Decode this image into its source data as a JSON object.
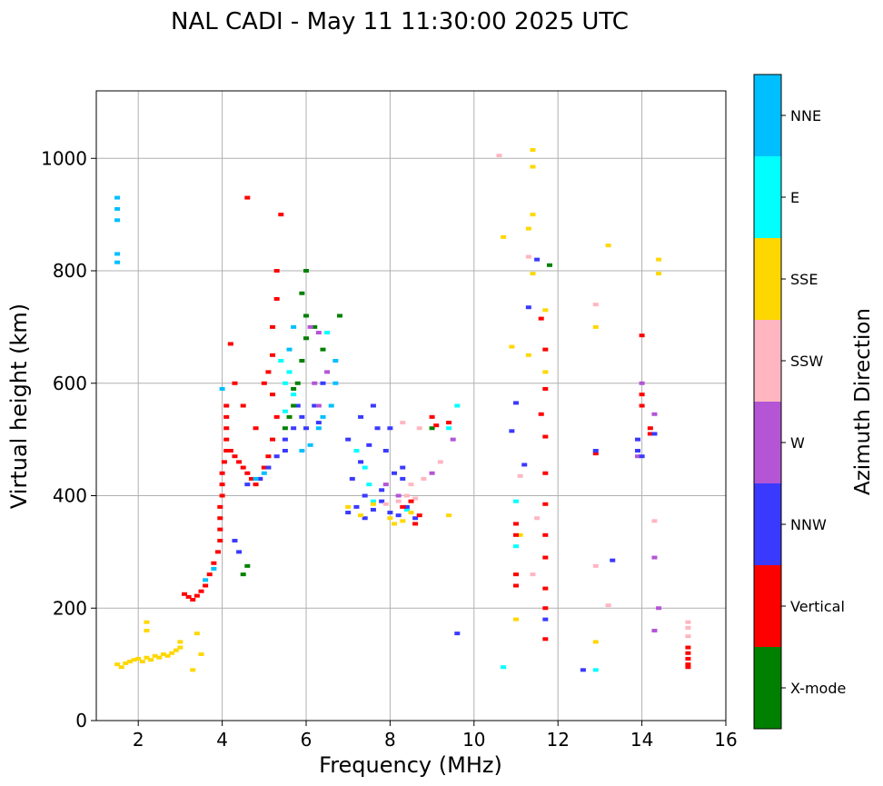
{
  "chart_data": {
    "type": "scatter",
    "title": "NAL CADI - May 11 11:30:00 2025 UTC",
    "xlabel": "Frequency (MHz)",
    "ylabel": "Virtual height (km)",
    "xlim": [
      1,
      16
    ],
    "ylim": [
      0,
      1120
    ],
    "xticks": [
      2,
      4,
      6,
      8,
      10,
      12,
      14,
      16
    ],
    "yticks": [
      0,
      200,
      400,
      600,
      800,
      1000
    ],
    "grid": true,
    "colorbar": {
      "label": "Azimuth Direction",
      "categories": [
        {
          "name": "X-mode",
          "color": "#008000"
        },
        {
          "name": "Vertical",
          "color": "#ff0000"
        },
        {
          "name": "NNW",
          "color": "#3a3aff"
        },
        {
          "name": "W",
          "color": "#b455d6"
        },
        {
          "name": "SSW",
          "color": "#ffb6c1"
        },
        {
          "name": "SSE",
          "color": "#ffd700"
        },
        {
          "name": "E",
          "color": "#00ffff"
        },
        {
          "name": "NNE",
          "color": "#00bfff"
        }
      ]
    },
    "series": [
      {
        "name": "echo-trace-low-E",
        "points": [
          [
            1.5,
            100
          ],
          [
            1.6,
            95
          ],
          [
            1.7,
            102
          ],
          [
            1.8,
            105
          ],
          [
            1.9,
            108
          ],
          [
            2.0,
            110
          ],
          [
            2.1,
            105
          ],
          [
            2.2,
            112
          ],
          [
            2.3,
            108
          ],
          [
            2.4,
            115
          ],
          [
            2.5,
            112
          ],
          [
            2.6,
            118
          ],
          [
            2.7,
            115
          ],
          [
            2.8,
            120
          ],
          [
            2.9,
            125
          ],
          [
            3.0,
            130
          ],
          [
            3.0,
            140
          ],
          [
            2.2,
            160
          ],
          [
            2.2,
            175
          ],
          [
            3.4,
            155
          ],
          [
            3.5,
            118
          ],
          [
            3.3,
            90
          ]
        ],
        "category": "SSE"
      },
      {
        "name": "echo-trace-1.5MHz",
        "points": [
          [
            1.5,
            930
          ],
          [
            1.5,
            910
          ],
          [
            1.5,
            890
          ],
          [
            1.5,
            830
          ],
          [
            1.5,
            815
          ]
        ],
        "category": "NNE"
      },
      {
        "name": "echo-trace-F-rise",
        "points": [
          [
            3.1,
            225
          ],
          [
            3.2,
            220
          ],
          [
            3.3,
            215
          ],
          [
            3.4,
            222
          ],
          [
            3.5,
            230
          ],
          [
            3.6,
            240
          ],
          [
            3.7,
            260
          ],
          [
            3.8,
            280
          ],
          [
            3.9,
            300
          ],
          [
            3.95,
            320
          ],
          [
            3.95,
            340
          ],
          [
            3.95,
            360
          ],
          [
            3.95,
            380
          ],
          [
            4.0,
            400
          ],
          [
            4.0,
            420
          ],
          [
            4.0,
            440
          ],
          [
            4.05,
            460
          ],
          [
            4.1,
            480
          ],
          [
            4.1,
            500
          ],
          [
            4.1,
            520
          ],
          [
            4.1,
            540
          ],
          [
            4.1,
            560
          ],
          [
            4.2,
            480
          ],
          [
            4.3,
            470
          ],
          [
            4.4,
            460
          ],
          [
            4.5,
            450
          ],
          [
            4.6,
            440
          ],
          [
            4.7,
            430
          ],
          [
            4.8,
            420
          ],
          [
            4.9,
            430
          ],
          [
            5.0,
            450
          ],
          [
            5.1,
            470
          ],
          [
            5.2,
            500
          ],
          [
            5.3,
            540
          ],
          [
            5.2,
            580
          ],
          [
            5.1,
            620
          ],
          [
            5.2,
            650
          ],
          [
            5.2,
            700
          ],
          [
            5.3,
            750
          ],
          [
            5.3,
            800
          ],
          [
            5.4,
            900
          ],
          [
            4.6,
            930
          ],
          [
            4.2,
            670
          ],
          [
            4.3,
            600
          ],
          [
            4.5,
            560
          ],
          [
            4.8,
            520
          ],
          [
            5.0,
            600
          ]
        ],
        "category": "Vertical"
      },
      {
        "name": "echo-trace-nnw-F",
        "points": [
          [
            4.4,
            300
          ],
          [
            4.3,
            320
          ],
          [
            4.6,
            420
          ],
          [
            4.9,
            430
          ],
          [
            5.1,
            450
          ],
          [
            5.3,
            470
          ],
          [
            5.5,
            500
          ],
          [
            5.7,
            520
          ],
          [
            5.9,
            540
          ],
          [
            6.0,
            520
          ],
          [
            6.2,
            560
          ],
          [
            6.3,
            530
          ],
          [
            5.5,
            480
          ],
          [
            5.8,
            560
          ],
          [
            6.4,
            600
          ]
        ],
        "category": "NNW"
      },
      {
        "name": "echo-trace-nne-F",
        "points": [
          [
            3.6,
            250
          ],
          [
            3.8,
            270
          ],
          [
            4.0,
            590
          ],
          [
            4.8,
            430
          ],
          [
            5.0,
            440
          ],
          [
            5.9,
            480
          ],
          [
            6.1,
            490
          ],
          [
            6.3,
            520
          ],
          [
            6.4,
            540
          ],
          [
            6.6,
            560
          ],
          [
            6.7,
            600
          ],
          [
            6.7,
            640
          ],
          [
            5.6,
            660
          ],
          [
            5.7,
            700
          ]
        ],
        "category": "NNE"
      },
      {
        "name": "echo-trace-xmode",
        "points": [
          [
            4.5,
            260
          ],
          [
            4.6,
            275
          ],
          [
            5.5,
            520
          ],
          [
            5.6,
            540
          ],
          [
            5.7,
            560
          ],
          [
            5.8,
            600
          ],
          [
            5.9,
            640
          ],
          [
            6.0,
            680
          ],
          [
            6.0,
            720
          ],
          [
            5.9,
            760
          ],
          [
            6.0,
            800
          ],
          [
            6.2,
            700
          ],
          [
            6.4,
            660
          ],
          [
            6.8,
            720
          ],
          [
            5.7,
            590
          ],
          [
            9.0,
            520
          ],
          [
            11.8,
            810
          ]
        ],
        "category": "X-mode"
      },
      {
        "name": "echo-trace-e-F",
        "points": [
          [
            5.4,
            640
          ],
          [
            5.5,
            600
          ],
          [
            5.6,
            620
          ],
          [
            5.7,
            580
          ],
          [
            5.5,
            550
          ],
          [
            6.5,
            690
          ],
          [
            7.2,
            480
          ],
          [
            7.4,
            450
          ],
          [
            7.5,
            420
          ],
          [
            7.6,
            390
          ],
          [
            8.4,
            375
          ],
          [
            9.4,
            520
          ],
          [
            9.6,
            560
          ],
          [
            11.0,
            310
          ],
          [
            11.0,
            390
          ],
          [
            10.7,
            95
          ],
          [
            12.9,
            90
          ]
        ],
        "category": "E"
      },
      {
        "name": "echo-trace-w-F",
        "points": [
          [
            6.1,
            700
          ],
          [
            6.3,
            690
          ],
          [
            6.2,
            600
          ],
          [
            6.3,
            560
          ],
          [
            6.5,
            620
          ],
          [
            7.9,
            420
          ],
          [
            8.2,
            400
          ],
          [
            9.5,
            500
          ],
          [
            9.0,
            440
          ],
          [
            13.9,
            470
          ],
          [
            14.3,
            290
          ],
          [
            14.4,
            200
          ],
          [
            14.3,
            160
          ],
          [
            14.3,
            545
          ],
          [
            14.0,
            600
          ]
        ],
        "category": "W"
      },
      {
        "name": "echo-trace-f2-cluster",
        "points": [
          [
            7.0,
            370
          ],
          [
            7.2,
            380
          ],
          [
            7.4,
            360
          ],
          [
            7.6,
            375
          ],
          [
            7.8,
            390
          ],
          [
            8.0,
            370
          ],
          [
            8.2,
            365
          ],
          [
            8.4,
            380
          ],
          [
            8.6,
            360
          ],
          [
            7.1,
            430
          ],
          [
            7.3,
            460
          ],
          [
            7.5,
            490
          ],
          [
            7.7,
            520
          ],
          [
            7.9,
            480
          ],
          [
            8.1,
            440
          ],
          [
            8.3,
            430
          ],
          [
            7.0,
            500
          ],
          [
            7.3,
            540
          ],
          [
            7.6,
            560
          ],
          [
            8.3,
            450
          ],
          [
            8.0,
            520
          ],
          [
            7.4,
            400
          ],
          [
            7.8,
            410
          ]
        ],
        "category": "NNW"
      },
      {
        "name": "echo-trace-ssw-F",
        "points": [
          [
            7.9,
            385
          ],
          [
            8.2,
            390
          ],
          [
            8.4,
            400
          ],
          [
            8.6,
            395
          ],
          [
            8.5,
            420
          ],
          [
            8.8,
            430
          ],
          [
            8.7,
            520
          ],
          [
            8.3,
            530
          ],
          [
            9.2,
            460
          ],
          [
            10.6,
            1005
          ],
          [
            11.1,
            435
          ],
          [
            11.3,
            825
          ],
          [
            11.5,
            360
          ],
          [
            11.4,
            260
          ],
          [
            12.9,
            740
          ],
          [
            12.9,
            275
          ],
          [
            13.2,
            205
          ],
          [
            14.3,
            355
          ],
          [
            15.1,
            175
          ],
          [
            15.1,
            165
          ],
          [
            15.1,
            150
          ],
          [
            14.0,
            580
          ]
        ],
        "category": "SSW"
      },
      {
        "name": "echo-trace-sse-F",
        "points": [
          [
            7.0,
            380
          ],
          [
            7.3,
            365
          ],
          [
            7.6,
            385
          ],
          [
            8.0,
            360
          ],
          [
            8.1,
            350
          ],
          [
            8.3,
            355
          ],
          [
            8.5,
            370
          ],
          [
            9.4,
            365
          ],
          [
            10.7,
            860
          ],
          [
            10.9,
            665
          ],
          [
            11.0,
            180
          ],
          [
            11.3,
            650
          ],
          [
            11.4,
            1015
          ],
          [
            11.4,
            985
          ],
          [
            11.4,
            900
          ],
          [
            11.4,
            795
          ],
          [
            11.3,
            875
          ],
          [
            11.7,
            620
          ],
          [
            11.7,
            730
          ],
          [
            12.9,
            700
          ],
          [
            13.2,
            845
          ],
          [
            12.9,
            140
          ],
          [
            14.4,
            820
          ],
          [
            14.4,
            795
          ],
          [
            11.1,
            330
          ]
        ],
        "category": "SSE"
      },
      {
        "name": "echo-trace-vertical-high",
        "points": [
          [
            8.3,
            380
          ],
          [
            8.5,
            390
          ],
          [
            8.6,
            350
          ],
          [
            8.7,
            365
          ],
          [
            9.0,
            540
          ],
          [
            9.1,
            525
          ],
          [
            9.4,
            530
          ],
          [
            11.0,
            350
          ],
          [
            11.0,
            330
          ],
          [
            11.0,
            260
          ],
          [
            11.0,
            240
          ],
          [
            11.6,
            715
          ],
          [
            11.7,
            660
          ],
          [
            11.7,
            590
          ],
          [
            11.6,
            545
          ],
          [
            11.7,
            505
          ],
          [
            11.7,
            440
          ],
          [
            11.7,
            385
          ],
          [
            11.7,
            330
          ],
          [
            11.7,
            290
          ],
          [
            11.7,
            235
          ],
          [
            11.7,
            200
          ],
          [
            11.7,
            145
          ],
          [
            12.9,
            475
          ],
          [
            14.0,
            560
          ],
          [
            14.0,
            580
          ],
          [
            14.0,
            685
          ],
          [
            14.2,
            520
          ],
          [
            14.2,
            510
          ],
          [
            15.1,
            130
          ],
          [
            15.1,
            120
          ],
          [
            15.1,
            110
          ],
          [
            15.1,
            100
          ],
          [
            15.1,
            95
          ]
        ],
        "category": "Vertical"
      },
      {
        "name": "echo-trace-nnw-high",
        "points": [
          [
            9.6,
            155
          ],
          [
            11.0,
            565
          ],
          [
            11.2,
            455
          ],
          [
            11.3,
            735
          ],
          [
            11.5,
            820
          ],
          [
            11.7,
            180
          ],
          [
            12.6,
            90
          ],
          [
            13.3,
            285
          ],
          [
            13.9,
            500
          ],
          [
            13.9,
            480
          ],
          [
            14.0,
            470
          ],
          [
            14.3,
            510
          ],
          [
            10.9,
            515
          ],
          [
            12.9,
            480
          ]
        ],
        "category": "NNW"
      }
    ]
  }
}
